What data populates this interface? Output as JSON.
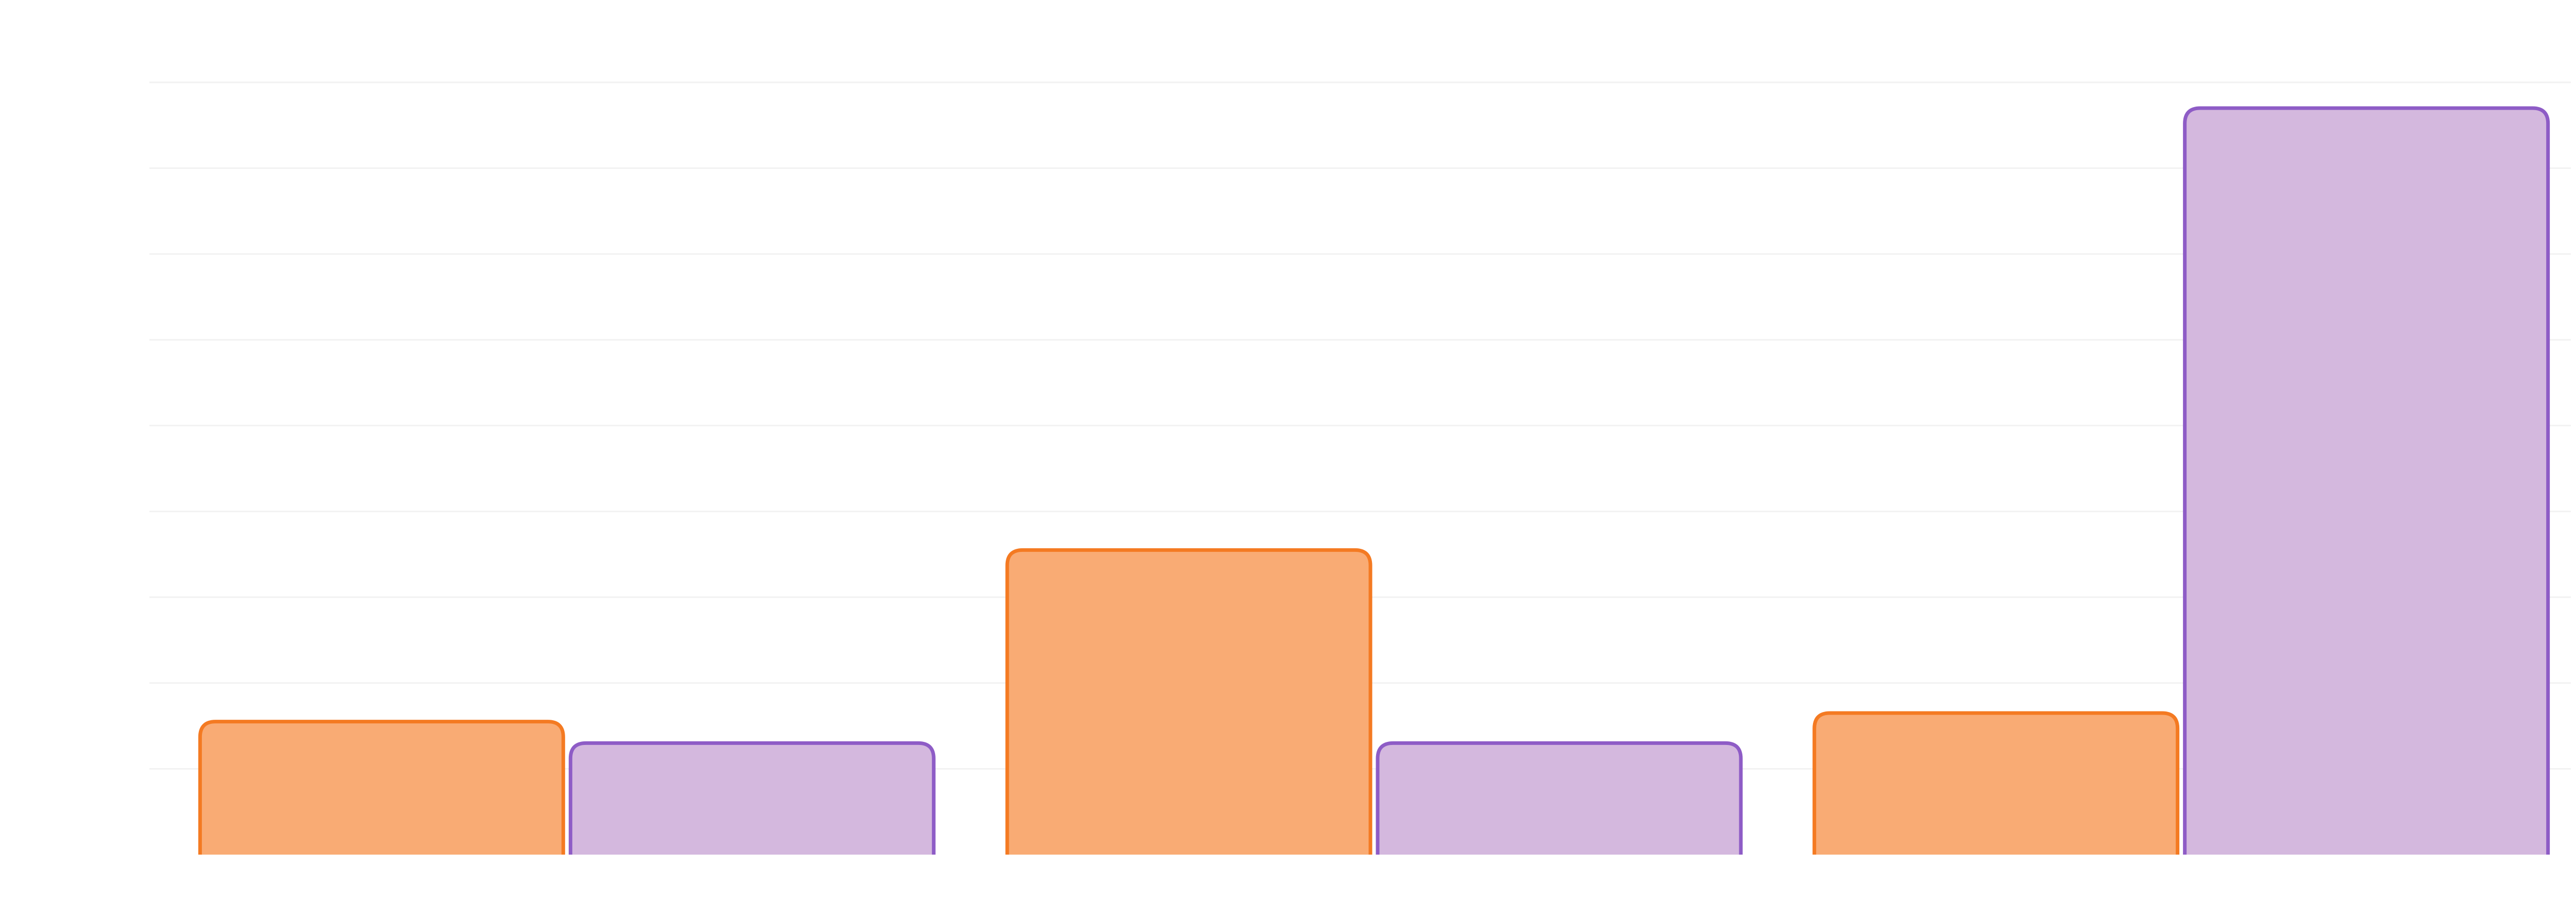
{
  "chart_data": {
    "type": "bar",
    "categories": [
      "",
      "",
      ""
    ],
    "series": [
      {
        "values": [
          1.55,
          3.55,
          1.65
        ],
        "color": "#f9ab74",
        "stroke": "#f47a22"
      },
      {
        "values": [
          1.3,
          1.3,
          8.7
        ],
        "color": "#d4b8de",
        "stroke": "#8e5cc6"
      }
    ],
    "title": "",
    "xlabel": "",
    "ylabel": "",
    "ylim": [
      0,
      9
    ],
    "grid": true,
    "grid_color": "#f2f2f2",
    "legend": "none"
  }
}
